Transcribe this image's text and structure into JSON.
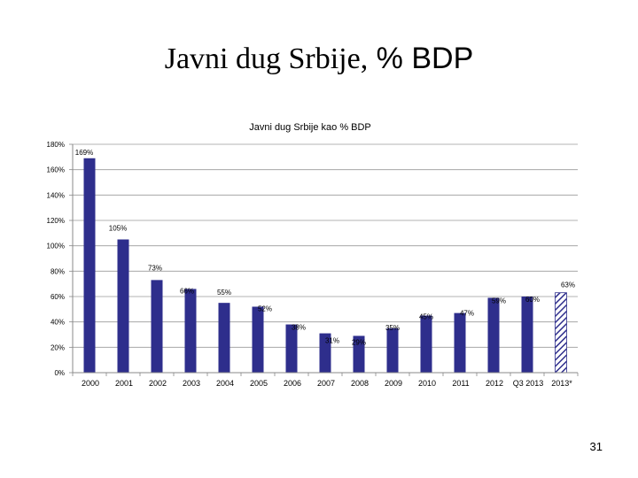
{
  "slide": {
    "title_part1": "Javni dug Srbije,",
    "title_part2": "% BDP",
    "page_number": "31"
  },
  "colors": {
    "bar": "#2E2E8C",
    "bar_projected": "#2E2E8C",
    "axis": "#888888",
    "gridline": "#9A9A9A"
  },
  "chart_data": {
    "type": "bar",
    "title": "Javni dug Srbije kao % BDP",
    "xlabel": "",
    "ylabel": "",
    "ylim": [
      0,
      180
    ],
    "yticks": [
      0,
      20,
      40,
      60,
      80,
      100,
      120,
      140,
      160,
      180
    ],
    "ytick_suffix": "%",
    "grid": true,
    "categories": [
      "2000",
      "2001",
      "2002",
      "2003",
      "2004",
      "2005",
      "2006",
      "2007",
      "2008",
      "2009",
      "2010",
      "2011",
      "2012",
      "Q3 2013",
      "2013*"
    ],
    "values": [
      169,
      105,
      73,
      66,
      55,
      52,
      38,
      31,
      29,
      35,
      45,
      47,
      59,
      60,
      63
    ],
    "labels": [
      "169%",
      "105%",
      "73%",
      "66%",
      "55%",
      "52%",
      "38%",
      "31%",
      "29%",
      "35%",
      "45%",
      "47%",
      "59%",
      "60%",
      "63%"
    ],
    "projected": [
      false,
      false,
      false,
      false,
      false,
      false,
      false,
      false,
      false,
      false,
      false,
      false,
      false,
      false,
      true
    ]
  }
}
